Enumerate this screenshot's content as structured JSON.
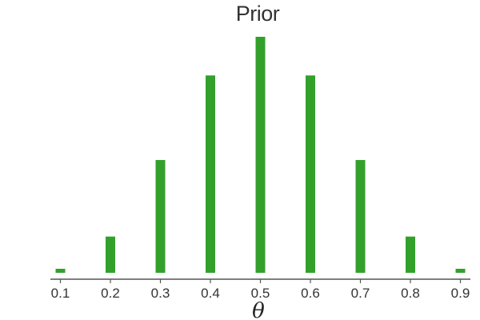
{
  "chart_data": {
    "type": "bar",
    "title": "Prior",
    "xlabel": "θ",
    "ylabel": "",
    "categories": [
      "0.1",
      "0.2",
      "0.3",
      "0.4",
      "0.5",
      "0.6",
      "0.7",
      "0.8",
      "0.9"
    ],
    "x": [
      0.1,
      0.2,
      0.3,
      0.4,
      0.5,
      0.6,
      0.7,
      0.8,
      0.9
    ],
    "values": [
      0.0064,
      0.0576,
      0.1792,
      0.3136,
      0.375,
      0.3136,
      0.1792,
      0.0576,
      0.0064
    ],
    "ylim": [
      0,
      0.39
    ],
    "xlim": [
      0.08,
      0.92
    ],
    "y_axis_visible": false,
    "grid": false,
    "colors": {
      "bar": "#33a02c"
    }
  }
}
